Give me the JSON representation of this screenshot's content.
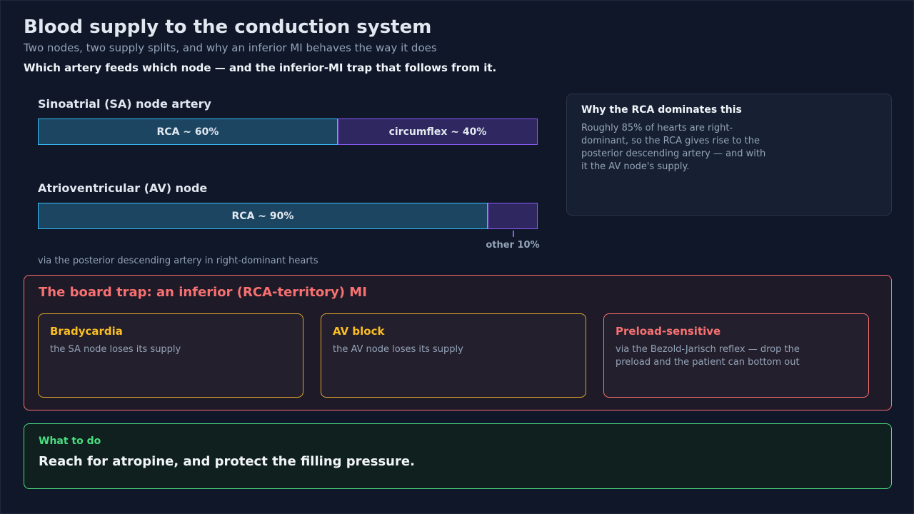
{
  "header": {
    "title": "Blood supply to the conduction system",
    "subtitle": "Two nodes, two supply splits, and why an inferior MI behaves the way it does",
    "lead": "Which artery feeds which node — and the inferior-MI trap that follows from it."
  },
  "supply": [
    {
      "title": "Sinoatrial (SA) node artery",
      "segments": [
        {
          "value": 60,
          "label": "RCA ~ 60%"
        },
        {
          "value": 40,
          "label": "circumflex ~ 40%"
        }
      ]
    },
    {
      "title": "Atrioventricular (AV) node",
      "segments": [
        {
          "value": 90,
          "label": "RCA ~ 90%"
        },
        {
          "value": 10,
          "label": "other 10%"
        }
      ],
      "note": "via the posterior descending artery in right-dominant hearts"
    }
  ],
  "side": {
    "title": "Why the RCA dominates this",
    "text": "Roughly 85% of hearts are right-dominant, so the RCA gives rise to the posterior descending artery — and with it the AV node's supply."
  },
  "trap": {
    "title": "The board trap: an inferior (RCA-territory) MI",
    "cards": [
      {
        "title": "Bradycardia",
        "text": "the SA node loses its supply"
      },
      {
        "title": "AV block",
        "text": "the AV node loses its supply"
      },
      {
        "title": "Preload-sensitive",
        "text": "via the Bezold-Jarisch reflex — drop the preload and the patient can bottom out"
      }
    ]
  },
  "action": {
    "label": "What to do",
    "text": "Reach for atropine, and protect the filling pressure."
  }
}
